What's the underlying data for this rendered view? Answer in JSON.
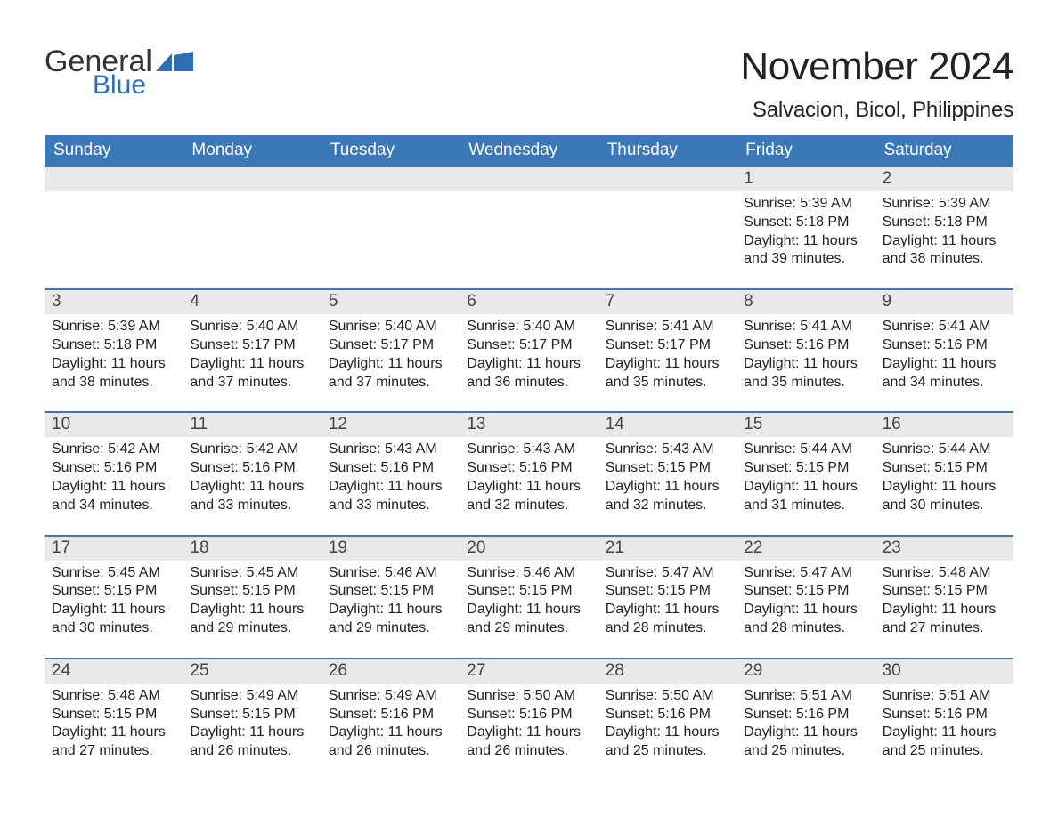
{
  "logo": {
    "text1": "General",
    "text2": "Blue",
    "flag_color": "#2d6fb6"
  },
  "header": {
    "month_title": "November 2024",
    "location": "Salvacion, Bicol, Philippines"
  },
  "colors": {
    "header_bg": "#3b78b8",
    "header_text": "#ffffff",
    "daynum_bg": "#e9e9e9",
    "daynum_text": "#444444",
    "day_border": "#3b78b8",
    "body_text": "#222222",
    "page_bg": "#ffffff"
  },
  "weekdays": [
    "Sunday",
    "Monday",
    "Tuesday",
    "Wednesday",
    "Thursday",
    "Friday",
    "Saturday"
  ],
  "weeks": [
    [
      null,
      null,
      null,
      null,
      null,
      {
        "day": "1",
        "sunrise": "Sunrise: 5:39 AM",
        "sunset": "Sunset: 5:18 PM",
        "daylight": "Daylight: 11 hours and 39 minutes."
      },
      {
        "day": "2",
        "sunrise": "Sunrise: 5:39 AM",
        "sunset": "Sunset: 5:18 PM",
        "daylight": "Daylight: 11 hours and 38 minutes."
      }
    ],
    [
      {
        "day": "3",
        "sunrise": "Sunrise: 5:39 AM",
        "sunset": "Sunset: 5:18 PM",
        "daylight": "Daylight: 11 hours and 38 minutes."
      },
      {
        "day": "4",
        "sunrise": "Sunrise: 5:40 AM",
        "sunset": "Sunset: 5:17 PM",
        "daylight": "Daylight: 11 hours and 37 minutes."
      },
      {
        "day": "5",
        "sunrise": "Sunrise: 5:40 AM",
        "sunset": "Sunset: 5:17 PM",
        "daylight": "Daylight: 11 hours and 37 minutes."
      },
      {
        "day": "6",
        "sunrise": "Sunrise: 5:40 AM",
        "sunset": "Sunset: 5:17 PM",
        "daylight": "Daylight: 11 hours and 36 minutes."
      },
      {
        "day": "7",
        "sunrise": "Sunrise: 5:41 AM",
        "sunset": "Sunset: 5:17 PM",
        "daylight": "Daylight: 11 hours and 35 minutes."
      },
      {
        "day": "8",
        "sunrise": "Sunrise: 5:41 AM",
        "sunset": "Sunset: 5:16 PM",
        "daylight": "Daylight: 11 hours and 35 minutes."
      },
      {
        "day": "9",
        "sunrise": "Sunrise: 5:41 AM",
        "sunset": "Sunset: 5:16 PM",
        "daylight": "Daylight: 11 hours and 34 minutes."
      }
    ],
    [
      {
        "day": "10",
        "sunrise": "Sunrise: 5:42 AM",
        "sunset": "Sunset: 5:16 PM",
        "daylight": "Daylight: 11 hours and 34 minutes."
      },
      {
        "day": "11",
        "sunrise": "Sunrise: 5:42 AM",
        "sunset": "Sunset: 5:16 PM",
        "daylight": "Daylight: 11 hours and 33 minutes."
      },
      {
        "day": "12",
        "sunrise": "Sunrise: 5:43 AM",
        "sunset": "Sunset: 5:16 PM",
        "daylight": "Daylight: 11 hours and 33 minutes."
      },
      {
        "day": "13",
        "sunrise": "Sunrise: 5:43 AM",
        "sunset": "Sunset: 5:16 PM",
        "daylight": "Daylight: 11 hours and 32 minutes."
      },
      {
        "day": "14",
        "sunrise": "Sunrise: 5:43 AM",
        "sunset": "Sunset: 5:15 PM",
        "daylight": "Daylight: 11 hours and 32 minutes."
      },
      {
        "day": "15",
        "sunrise": "Sunrise: 5:44 AM",
        "sunset": "Sunset: 5:15 PM",
        "daylight": "Daylight: 11 hours and 31 minutes."
      },
      {
        "day": "16",
        "sunrise": "Sunrise: 5:44 AM",
        "sunset": "Sunset: 5:15 PM",
        "daylight": "Daylight: 11 hours and 30 minutes."
      }
    ],
    [
      {
        "day": "17",
        "sunrise": "Sunrise: 5:45 AM",
        "sunset": "Sunset: 5:15 PM",
        "daylight": "Daylight: 11 hours and 30 minutes."
      },
      {
        "day": "18",
        "sunrise": "Sunrise: 5:45 AM",
        "sunset": "Sunset: 5:15 PM",
        "daylight": "Daylight: 11 hours and 29 minutes."
      },
      {
        "day": "19",
        "sunrise": "Sunrise: 5:46 AM",
        "sunset": "Sunset: 5:15 PM",
        "daylight": "Daylight: 11 hours and 29 minutes."
      },
      {
        "day": "20",
        "sunrise": "Sunrise: 5:46 AM",
        "sunset": "Sunset: 5:15 PM",
        "daylight": "Daylight: 11 hours and 29 minutes."
      },
      {
        "day": "21",
        "sunrise": "Sunrise: 5:47 AM",
        "sunset": "Sunset: 5:15 PM",
        "daylight": "Daylight: 11 hours and 28 minutes."
      },
      {
        "day": "22",
        "sunrise": "Sunrise: 5:47 AM",
        "sunset": "Sunset: 5:15 PM",
        "daylight": "Daylight: 11 hours and 28 minutes."
      },
      {
        "day": "23",
        "sunrise": "Sunrise: 5:48 AM",
        "sunset": "Sunset: 5:15 PM",
        "daylight": "Daylight: 11 hours and 27 minutes."
      }
    ],
    [
      {
        "day": "24",
        "sunrise": "Sunrise: 5:48 AM",
        "sunset": "Sunset: 5:15 PM",
        "daylight": "Daylight: 11 hours and 27 minutes."
      },
      {
        "day": "25",
        "sunrise": "Sunrise: 5:49 AM",
        "sunset": "Sunset: 5:15 PM",
        "daylight": "Daylight: 11 hours and 26 minutes."
      },
      {
        "day": "26",
        "sunrise": "Sunrise: 5:49 AM",
        "sunset": "Sunset: 5:16 PM",
        "daylight": "Daylight: 11 hours and 26 minutes."
      },
      {
        "day": "27",
        "sunrise": "Sunrise: 5:50 AM",
        "sunset": "Sunset: 5:16 PM",
        "daylight": "Daylight: 11 hours and 26 minutes."
      },
      {
        "day": "28",
        "sunrise": "Sunrise: 5:50 AM",
        "sunset": "Sunset: 5:16 PM",
        "daylight": "Daylight: 11 hours and 25 minutes."
      },
      {
        "day": "29",
        "sunrise": "Sunrise: 5:51 AM",
        "sunset": "Sunset: 5:16 PM",
        "daylight": "Daylight: 11 hours and 25 minutes."
      },
      {
        "day": "30",
        "sunrise": "Sunrise: 5:51 AM",
        "sunset": "Sunset: 5:16 PM",
        "daylight": "Daylight: 11 hours and 25 minutes."
      }
    ]
  ]
}
